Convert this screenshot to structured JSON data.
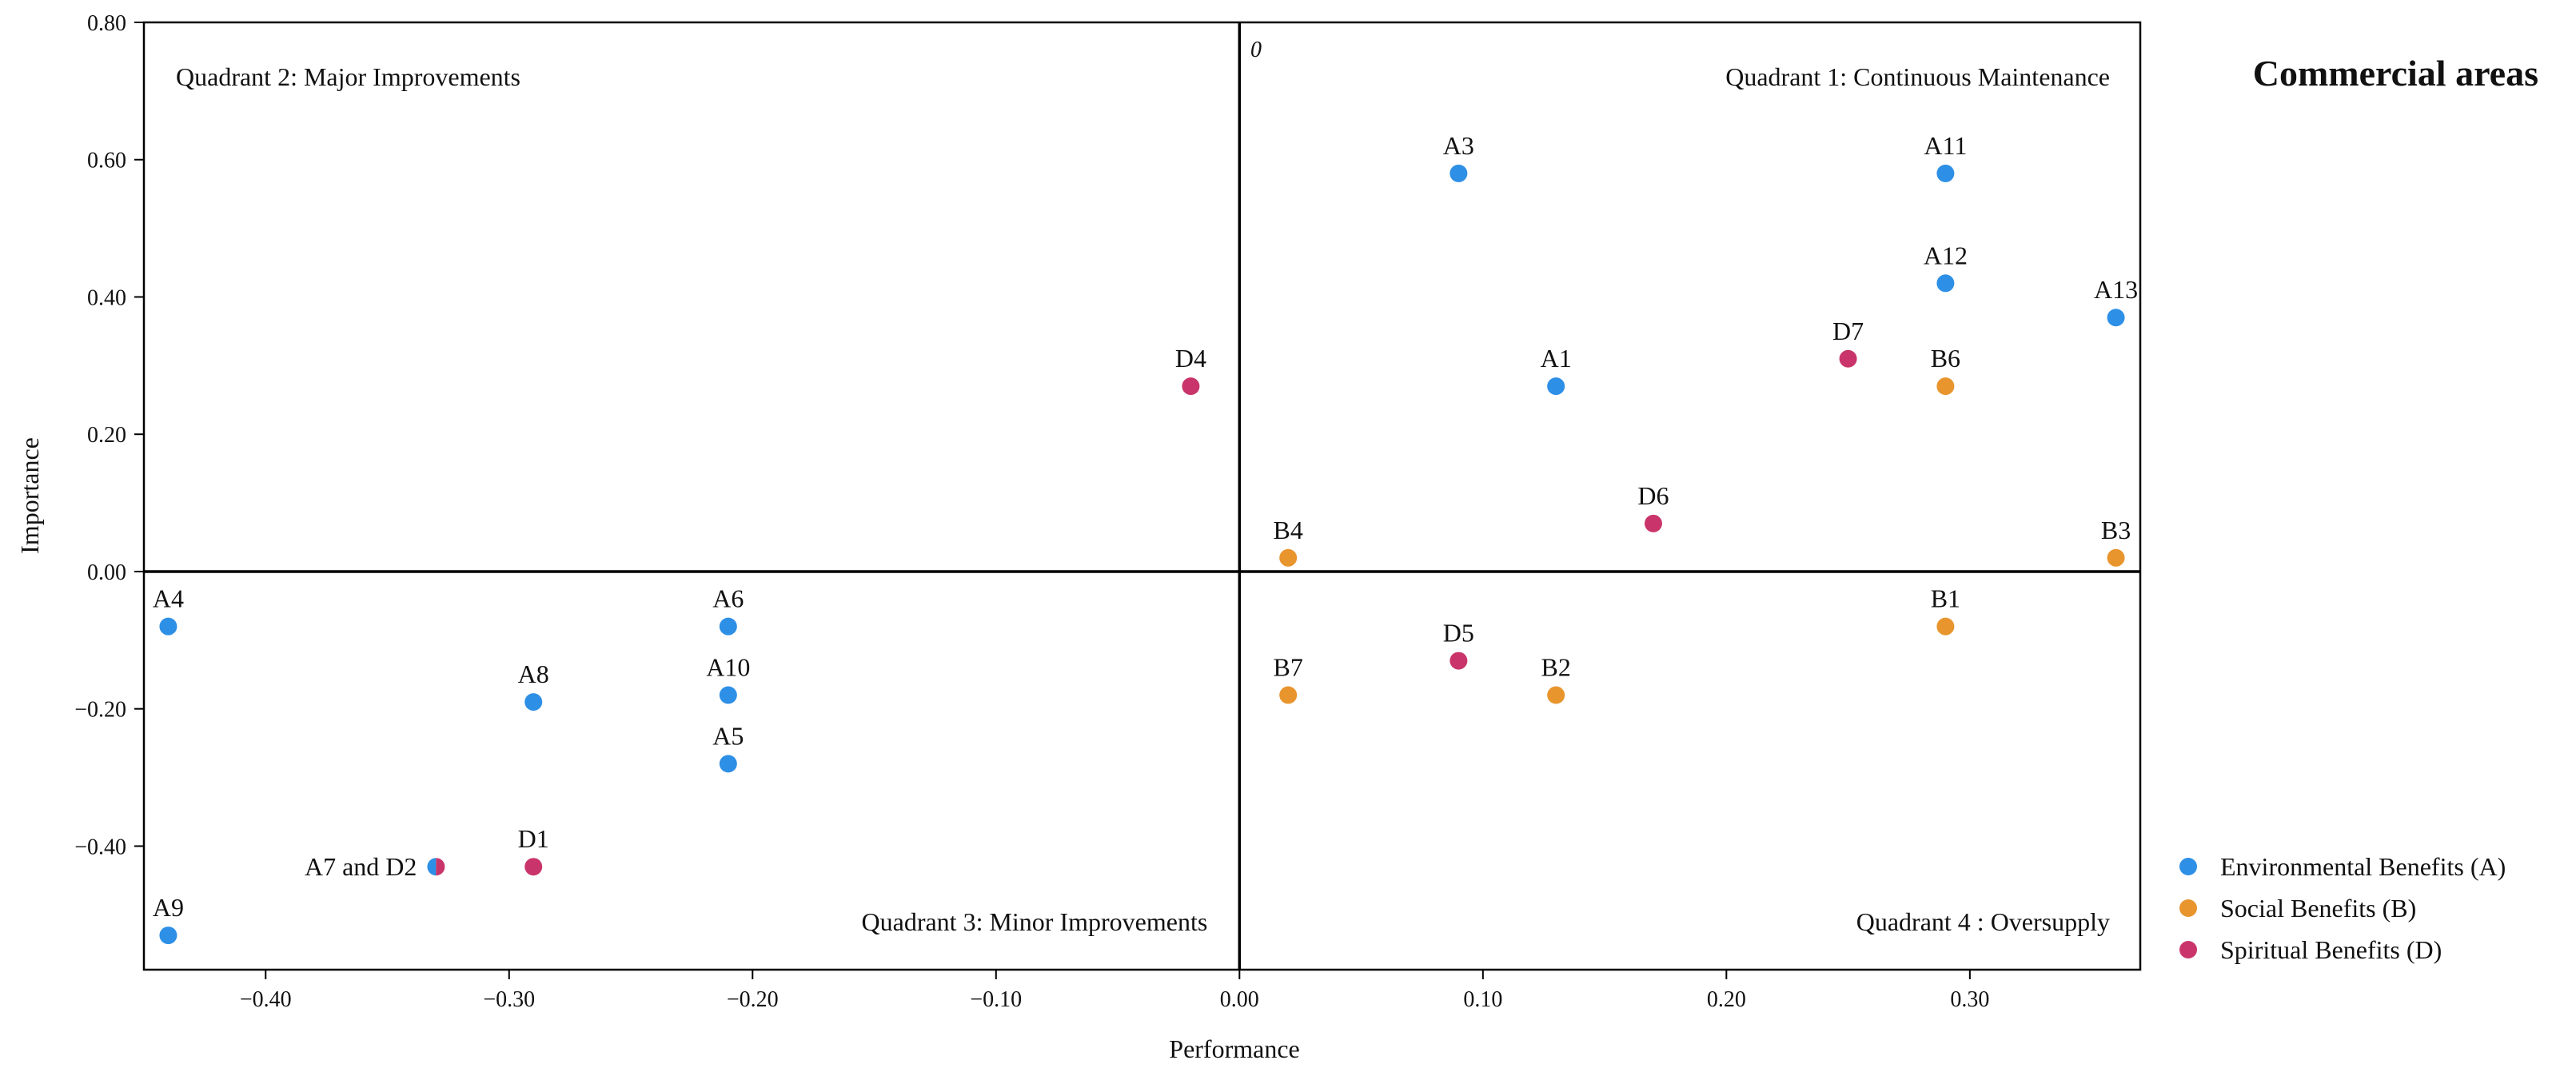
{
  "chart_data": {
    "type": "scatter",
    "title": "Commercial areas",
    "xlabel": "Performance",
    "ylabel": "Importance",
    "xlim": [
      -0.45,
      0.37
    ],
    "ylim": [
      -0.58,
      0.8
    ],
    "x_ticks": [
      -0.4,
      -0.3,
      -0.2,
      -0.1,
      0.0,
      0.1,
      0.2,
      0.3
    ],
    "x_tick_labels": [
      "−0.40",
      "−0.30",
      "−0.20",
      "−0.10",
      "0.00",
      "0.10",
      "0.20",
      "0.30"
    ],
    "y_ticks": [
      0.8,
      0.6,
      0.4,
      0.2,
      0.0,
      -0.2,
      -0.4
    ],
    "y_tick_labels": [
      "0.80",
      "0.60",
      "0.40",
      "0.20",
      "0.00",
      "−0.20",
      "−0.40"
    ],
    "origin_label": "0",
    "grid": false,
    "quadrants": [
      {
        "label": "Quadrant 1: Continuous Maintenance",
        "position": "top-right"
      },
      {
        "label": "Quadrant 2: Major Improvements",
        "position": "top-left"
      },
      {
        "label": "Quadrant 3: Minor Improvements",
        "position": "bottom-left"
      },
      {
        "label": "Quadrant 4 : Oversupply",
        "position": "bottom-right"
      }
    ],
    "legend": {
      "position": "right"
    },
    "series": [
      {
        "name": "Environmental Benefits (A)",
        "color": "#2E8FE6",
        "points": [
          {
            "label": "A1",
            "x": 0.13,
            "y": 0.27
          },
          {
            "label": "A3",
            "x": 0.09,
            "y": 0.58
          },
          {
            "label": "A4",
            "x": -0.44,
            "y": -0.08
          },
          {
            "label": "A5",
            "x": -0.21,
            "y": -0.28
          },
          {
            "label": "A6",
            "x": -0.21,
            "y": -0.08
          },
          {
            "label": "A8",
            "x": -0.29,
            "y": -0.19
          },
          {
            "label": "A9",
            "x": -0.44,
            "y": -0.53
          },
          {
            "label": "A10",
            "x": -0.21,
            "y": -0.18
          },
          {
            "label": "A11",
            "x": 0.29,
            "y": 0.58
          },
          {
            "label": "A12",
            "x": 0.29,
            "y": 0.42
          },
          {
            "label": "A13",
            "x": 0.36,
            "y": 0.37
          },
          {
            "label": "A7 and D2",
            "x": -0.33,
            "y": -0.43
          }
        ]
      },
      {
        "name": "Social Benefits (B)",
        "color": "#E8952E",
        "points": [
          {
            "label": "B1",
            "x": 0.29,
            "y": -0.08
          },
          {
            "label": "B2",
            "x": 0.13,
            "y": -0.18
          },
          {
            "label": "B3",
            "x": 0.36,
            "y": 0.02
          },
          {
            "label": "B4",
            "x": 0.02,
            "y": 0.02
          },
          {
            "label": "B6",
            "x": 0.29,
            "y": 0.27
          },
          {
            "label": "B7",
            "x": 0.02,
            "y": -0.18
          }
        ]
      },
      {
        "name": "Spiritual Benefits (D)",
        "color": "#C9356A",
        "points": [
          {
            "label": "D1",
            "x": -0.29,
            "y": -0.43
          },
          {
            "label": "D4",
            "x": -0.02,
            "y": 0.27
          },
          {
            "label": "D5",
            "x": 0.09,
            "y": -0.13
          },
          {
            "label": "D6",
            "x": 0.17,
            "y": 0.07
          },
          {
            "label": "D7",
            "x": 0.25,
            "y": 0.31
          }
        ]
      }
    ]
  }
}
